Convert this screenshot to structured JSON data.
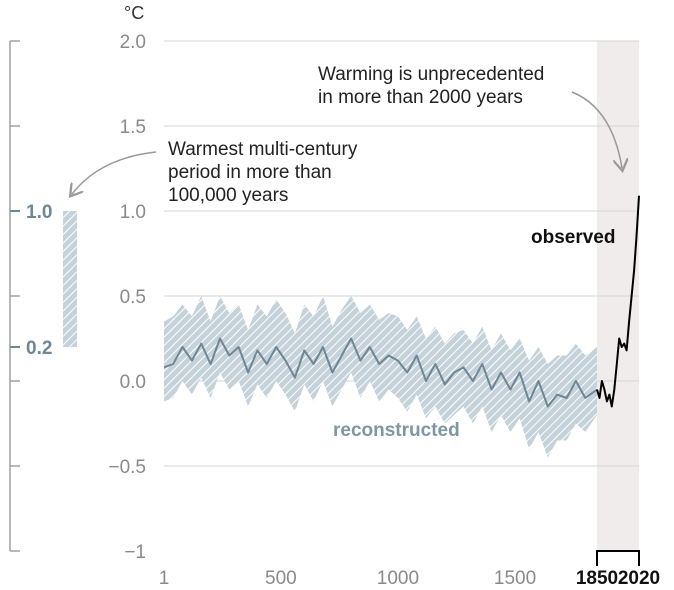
{
  "chart_data": {
    "type": "line",
    "unit": "°C",
    "ylim": [
      -1,
      2
    ],
    "y_ticks": [
      "2.0",
      "1.5",
      "1.0",
      "0.5",
      "0.0",
      "−0.5",
      "−1"
    ],
    "y_tick_values": [
      2.0,
      1.5,
      1.0,
      0.5,
      0.0,
      -0.5,
      -1
    ],
    "x_ticks": [
      "1",
      "500",
      "1000",
      "1500"
    ],
    "x_tick_values": [
      1,
      500,
      1000,
      1500
    ],
    "x_ticks_bold": [
      "1850",
      "2020"
    ],
    "x_tick_bold_values": [
      1850,
      2020
    ],
    "xlim": [
      1,
      2020
    ],
    "left_panel": {
      "ticks": [
        "1.0",
        "0.2"
      ],
      "tick_values": [
        1.0,
        0.2
      ],
      "bar_range": [
        0.2,
        1.0
      ]
    },
    "annotations": {
      "warming": [
        "Warming is unprecedented",
        "in more than 2000 years"
      ],
      "warmest": [
        "Warmest multi-century",
        "period in more than",
        "100,000 years"
      ]
    },
    "series": [
      {
        "name": "reconstructed",
        "color": "#6e8794",
        "x": [
          1,
          40,
          80,
          120,
          160,
          200,
          240,
          280,
          320,
          360,
          400,
          440,
          480,
          520,
          560,
          600,
          640,
          680,
          720,
          760,
          800,
          840,
          880,
          920,
          960,
          1000,
          1040,
          1080,
          1120,
          1160,
          1200,
          1240,
          1280,
          1320,
          1360,
          1400,
          1440,
          1480,
          1520,
          1560,
          1600,
          1640,
          1680,
          1720,
          1760,
          1800,
          1850
        ],
        "values": [
          0.08,
          0.1,
          0.2,
          0.12,
          0.22,
          0.1,
          0.25,
          0.15,
          0.2,
          0.05,
          0.18,
          0.1,
          0.2,
          0.12,
          0.02,
          0.18,
          0.1,
          0.2,
          0.05,
          0.15,
          0.25,
          0.12,
          0.2,
          0.1,
          0.15,
          0.12,
          0.05,
          0.15,
          0.0,
          0.1,
          -0.02,
          0.05,
          0.08,
          0.0,
          0.1,
          -0.05,
          0.05,
          -0.05,
          0.05,
          -0.12,
          0.0,
          -0.15,
          -0.08,
          -0.1,
          0.0,
          -0.1,
          -0.05
        ],
        "lower": [
          -0.12,
          -0.1,
          0.0,
          -0.08,
          0.02,
          -0.1,
          0.05,
          -0.05,
          0.0,
          -0.15,
          -0.02,
          -0.1,
          0.0,
          -0.08,
          -0.18,
          -0.02,
          -0.12,
          0.0,
          -0.15,
          -0.05,
          0.05,
          -0.1,
          0.0,
          -0.12,
          -0.05,
          -0.1,
          -0.18,
          -0.08,
          -0.22,
          -0.15,
          -0.25,
          -0.2,
          -0.15,
          -0.25,
          -0.15,
          -0.3,
          -0.2,
          -0.3,
          -0.22,
          -0.4,
          -0.3,
          -0.45,
          -0.35,
          -0.35,
          -0.25,
          -0.3,
          -0.2
        ],
        "upper": [
          0.35,
          0.38,
          0.45,
          0.38,
          0.5,
          0.35,
          0.5,
          0.4,
          0.45,
          0.3,
          0.45,
          0.38,
          0.48,
          0.4,
          0.28,
          0.45,
          0.38,
          0.5,
          0.32,
          0.42,
          0.5,
          0.4,
          0.45,
          0.36,
          0.4,
          0.38,
          0.3,
          0.38,
          0.25,
          0.32,
          0.22,
          0.28,
          0.3,
          0.22,
          0.32,
          0.18,
          0.28,
          0.18,
          0.25,
          0.12,
          0.2,
          0.1,
          0.15,
          0.15,
          0.22,
          0.15,
          0.2
        ]
      },
      {
        "name": "observed",
        "color": "#000000",
        "x": [
          1850,
          1860,
          1870,
          1880,
          1890,
          1900,
          1910,
          1920,
          1930,
          1940,
          1950,
          1960,
          1970,
          1980,
          1990,
          2000,
          2010,
          2020
        ],
        "values": [
          -0.05,
          -0.1,
          0.0,
          -0.05,
          -0.12,
          -0.08,
          -0.15,
          -0.05,
          0.1,
          0.25,
          0.2,
          0.22,
          0.18,
          0.35,
          0.5,
          0.65,
          0.85,
          1.09
        ]
      }
    ]
  }
}
